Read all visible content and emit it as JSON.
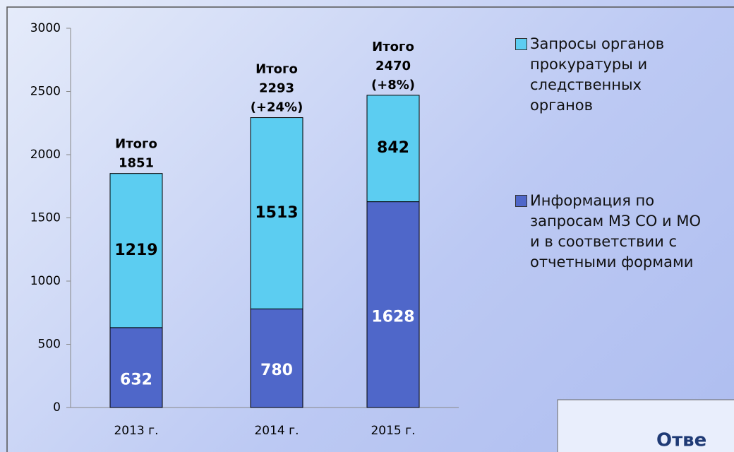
{
  "chart_data": {
    "type": "stacked_bar",
    "categories": [
      "2013 г.",
      "2014 г.",
      "2015 г."
    ],
    "series": [
      {
        "name": "Информация по запросам МЗ СО и МО и в соответствии с отчетными формами",
        "color": "#4f67c9",
        "values": [
          632,
          780,
          1628
        ]
      },
      {
        "name": "Запросы органов прокуратуры и следственных органов",
        "color": "#5ccdf1",
        "values": [
          1219,
          1513,
          842
        ]
      }
    ],
    "annotations": [
      [
        "Итого",
        "1851"
      ],
      [
        "Итого",
        "2293",
        "(+24%)"
      ],
      [
        "Итого",
        "2470",
        "(+8%)"
      ]
    ],
    "ylim": [
      0,
      3000
    ],
    "yticks": [
      0,
      500,
      1000,
      1500,
      2000,
      2500,
      3000
    ],
    "grid": false,
    "legend": "right"
  },
  "footer_box": {
    "text": "Отве"
  }
}
